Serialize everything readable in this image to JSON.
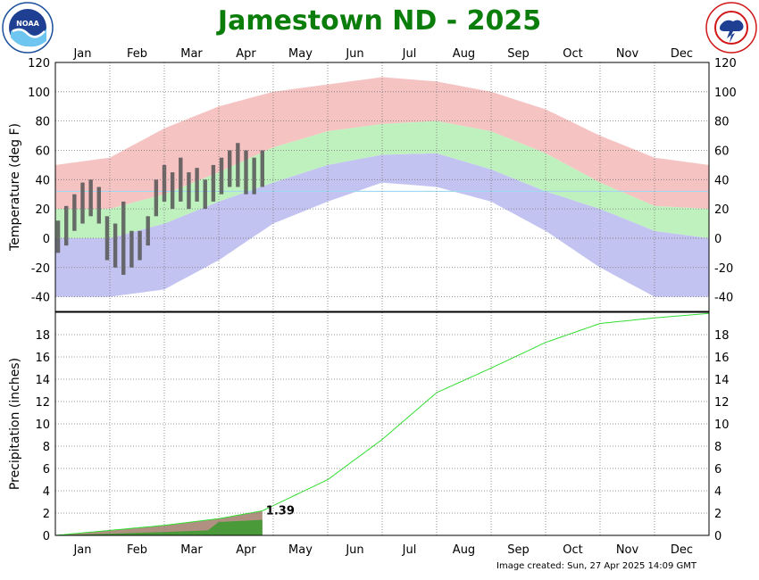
{
  "page": {
    "title": "Jamestown ND - 2025",
    "created": "Image created: Sun, 27 Apr 2025 14:09 GMT",
    "logos": {
      "left": "noaa-logo",
      "right": "nws-logo"
    }
  },
  "months": [
    "Jan",
    "Feb",
    "Mar",
    "Apr",
    "May",
    "Jun",
    "Jul",
    "Aug",
    "Sep",
    "Oct",
    "Nov",
    "Dec"
  ],
  "chart_data": [
    {
      "type": "area",
      "ylabel": "Temperature (deg F)",
      "ylim": [
        -50,
        120
      ],
      "yticks": [
        -40,
        -20,
        0,
        20,
        40,
        60,
        80,
        100,
        120
      ],
      "x_unit": "month",
      "grid": true,
      "freezing_line": 32,
      "colors": {
        "record_range": "#f4b8b8",
        "normal_range": "#b8f0b8",
        "record_low_range": "#b8b8f0",
        "observed": "#555555",
        "freezing": "#9fd8f0"
      },
      "series": [
        {
          "key": "normal_high",
          "x": [
            0,
            1,
            2,
            3,
            4,
            5,
            6,
            7,
            8,
            9,
            10,
            11,
            12
          ],
          "values": [
            20,
            20,
            30,
            45,
            62,
            73,
            78,
            80,
            73,
            58,
            38,
            22,
            20
          ]
        },
        {
          "key": "normal_low",
          "x": [
            0,
            1,
            2,
            3,
            4,
            5,
            6,
            7,
            8,
            9,
            10,
            11,
            12
          ],
          "values": [
            0,
            0,
            10,
            25,
            38,
            50,
            57,
            58,
            47,
            32,
            20,
            5,
            0
          ]
        },
        {
          "key": "record_high",
          "x": [
            0,
            1,
            2,
            3,
            4,
            5,
            6,
            7,
            8,
            9,
            10,
            11,
            12
          ],
          "values": [
            50,
            55,
            75,
            90,
            100,
            105,
            110,
            107,
            100,
            88,
            70,
            55,
            50
          ]
        },
        {
          "key": "record_low",
          "x": [
            0,
            1,
            2,
            3,
            4,
            5,
            6,
            7,
            8,
            9,
            10,
            11,
            12
          ],
          "values": [
            -40,
            -40,
            -35,
            -15,
            10,
            25,
            38,
            35,
            25,
            5,
            -20,
            -40,
            -40
          ]
        },
        {
          "key": "observed_high",
          "x": [
            0.05,
            0.2,
            0.35,
            0.5,
            0.65,
            0.8,
            0.95,
            1.1,
            1.25,
            1.4,
            1.55,
            1.7,
            1.85,
            2.0,
            2.15,
            2.3,
            2.45,
            2.6,
            2.75,
            2.9,
            3.05,
            3.2,
            3.35,
            3.5,
            3.65,
            3.8
          ],
          "values": [
            12,
            22,
            30,
            38,
            40,
            35,
            15,
            10,
            25,
            5,
            5,
            15,
            40,
            50,
            45,
            55,
            45,
            48,
            40,
            50,
            55,
            60,
            65,
            60,
            55,
            60
          ]
        },
        {
          "key": "observed_low",
          "x": [
            0.05,
            0.2,
            0.35,
            0.5,
            0.65,
            0.8,
            0.95,
            1.1,
            1.25,
            1.4,
            1.55,
            1.7,
            1.85,
            2.0,
            2.15,
            2.3,
            2.45,
            2.6,
            2.75,
            2.9,
            3.05,
            3.2,
            3.35,
            3.5,
            3.65,
            3.8
          ],
          "values": [
            -10,
            -5,
            5,
            10,
            15,
            10,
            -15,
            -20,
            -25,
            -20,
            -15,
            -5,
            15,
            25,
            20,
            25,
            20,
            25,
            20,
            25,
            30,
            35,
            35,
            30,
            30,
            35
          ]
        }
      ]
    },
    {
      "type": "line",
      "ylabel": "Precipitation (inches)",
      "ylim": [
        0,
        20
      ],
      "yticks": [
        0,
        2,
        4,
        6,
        8,
        10,
        12,
        14,
        16,
        18
      ],
      "x_unit": "month",
      "grid": true,
      "colors": {
        "normal": "#33dd33",
        "observed": "#4a9a3a",
        "normal_fill": "#b09080"
      },
      "annotation": "1.39",
      "series": [
        {
          "key": "normal_cumulative",
          "x": [
            0,
            1,
            2,
            3,
            3.8,
            5,
            6,
            7,
            8,
            9,
            10,
            11,
            12
          ],
          "values": [
            0,
            0.45,
            0.9,
            1.5,
            2.2,
            5.0,
            8.6,
            12.8,
            15.0,
            17.3,
            19.0,
            19.5,
            19.9
          ]
        },
        {
          "key": "observed_cumulative",
          "x": [
            0,
            1,
            2,
            2.8,
            3.0,
            3.8
          ],
          "values": [
            0,
            0.15,
            0.3,
            0.45,
            1.2,
            1.39
          ]
        }
      ]
    }
  ]
}
